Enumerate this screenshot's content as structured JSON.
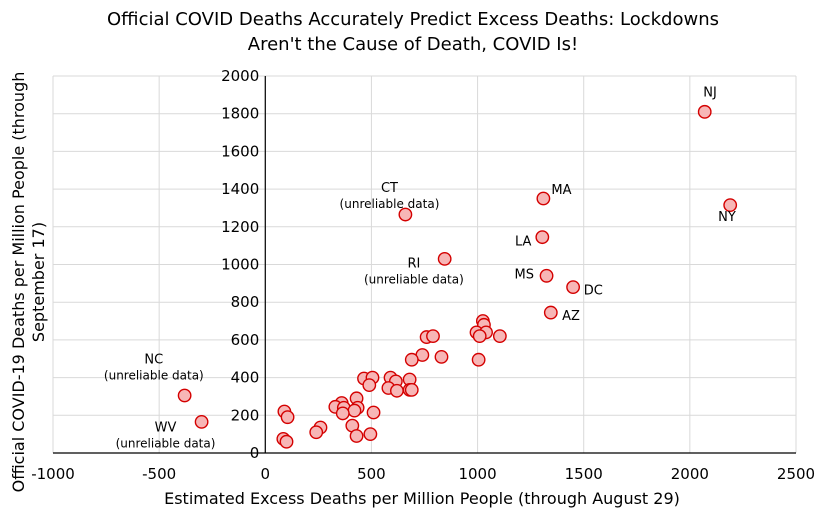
{
  "chart_data": {
    "type": "scatter",
    "title_lines": [
      "Official COVID Deaths Accurately Predict Excess Deaths: Lockdowns",
      "Aren't the Cause of Death, COVID Is!"
    ],
    "xlabel": "Estimated Excess Deaths per Million People (through August 29)",
    "ylabel_lines": [
      "Official COVID-19 Deaths per Million People (through",
      "September 17)"
    ],
    "xlim": [
      -1000,
      2500
    ],
    "ylim": [
      0,
      2000
    ],
    "x_ticks": [
      -1000,
      -500,
      0,
      500,
      1000,
      1500,
      2000,
      2500
    ],
    "y_ticks": [
      0,
      200,
      400,
      600,
      800,
      1000,
      1200,
      1400,
      1600,
      1800,
      2000
    ],
    "x_tick_labels": [
      "-1000",
      "-500",
      "0",
      "500",
      "1000",
      "1500",
      "2000",
      "2500"
    ],
    "y_tick_labels": [
      "0",
      "200",
      "400",
      "600",
      "800",
      "1000",
      "1200",
      "1400",
      "1600",
      "1800",
      "2000"
    ],
    "grid": true,
    "colors": {
      "point_fill": "#f7b6b6",
      "point_stroke": "#d40000",
      "grid": "#d9d9d9"
    },
    "points": [
      {
        "x": 2070,
        "y": 1810
      },
      {
        "x": 2190,
        "y": 1315
      },
      {
        "x": 1310,
        "y": 1350
      },
      {
        "x": 1305,
        "y": 1145
      },
      {
        "x": 1325,
        "y": 940
      },
      {
        "x": 1450,
        "y": 880
      },
      {
        "x": 1345,
        "y": 745
      },
      {
        "x": 660,
        "y": 1265
      },
      {
        "x": 845,
        "y": 1030
      },
      {
        "x": -380,
        "y": 305
      },
      {
        "x": -300,
        "y": 165
      },
      {
        "x": 1025,
        "y": 700
      },
      {
        "x": 1030,
        "y": 680
      },
      {
        "x": 995,
        "y": 640
      },
      {
        "x": 1040,
        "y": 640
      },
      {
        "x": 1010,
        "y": 620
      },
      {
        "x": 1105,
        "y": 620
      },
      {
        "x": 760,
        "y": 615
      },
      {
        "x": 790,
        "y": 620
      },
      {
        "x": 740,
        "y": 520
      },
      {
        "x": 690,
        "y": 495
      },
      {
        "x": 830,
        "y": 510
      },
      {
        "x": 1005,
        "y": 495
      },
      {
        "x": 465,
        "y": 395
      },
      {
        "x": 505,
        "y": 400
      },
      {
        "x": 590,
        "y": 400
      },
      {
        "x": 680,
        "y": 390
      },
      {
        "x": 615,
        "y": 380
      },
      {
        "x": 490,
        "y": 360
      },
      {
        "x": 580,
        "y": 345
      },
      {
        "x": 620,
        "y": 330
      },
      {
        "x": 680,
        "y": 335
      },
      {
        "x": 690,
        "y": 335
      },
      {
        "x": 430,
        "y": 290
      },
      {
        "x": 360,
        "y": 265
      },
      {
        "x": 330,
        "y": 245
      },
      {
        "x": 370,
        "y": 240
      },
      {
        "x": 435,
        "y": 240
      },
      {
        "x": 420,
        "y": 225
      },
      {
        "x": 510,
        "y": 215
      },
      {
        "x": 365,
        "y": 210
      },
      {
        "x": 90,
        "y": 220
      },
      {
        "x": 105,
        "y": 190
      },
      {
        "x": 410,
        "y": 145
      },
      {
        "x": 260,
        "y": 135
      },
      {
        "x": 240,
        "y": 110
      },
      {
        "x": 430,
        "y": 90
      },
      {
        "x": 495,
        "y": 100
      },
      {
        "x": 85,
        "y": 75
      },
      {
        "x": 100,
        "y": 60
      }
    ],
    "annotations": [
      {
        "lines": [
          "NJ"
        ],
        "x": 2095,
        "y": 1890
      },
      {
        "lines": [
          "NY"
        ],
        "x": 2175,
        "y": 1230
      },
      {
        "lines": [
          "MA"
        ],
        "x": 1395,
        "y": 1375
      },
      {
        "lines": [
          "LA"
        ],
        "x": 1215,
        "y": 1100
      },
      {
        "lines": [
          "MS"
        ],
        "x": 1220,
        "y": 925
      },
      {
        "lines": [
          "DC"
        ],
        "x": 1545,
        "y": 840
      },
      {
        "lines": [
          "AZ"
        ],
        "x": 1440,
        "y": 705
      },
      {
        "lines": [
          "CT",
          "(unreliable data)"
        ],
        "x": 585,
        "y": 1385
      },
      {
        "lines": [
          "RI",
          "(unreliable data)"
        ],
        "x": 700,
        "y": 985
      },
      {
        "lines": [
          "NC",
          "(unreliable data)"
        ],
        "x": -525,
        "y": 475
      },
      {
        "lines": [
          "WV",
          "(unreliable data)"
        ],
        "x": -470,
        "y": 115
      }
    ]
  }
}
